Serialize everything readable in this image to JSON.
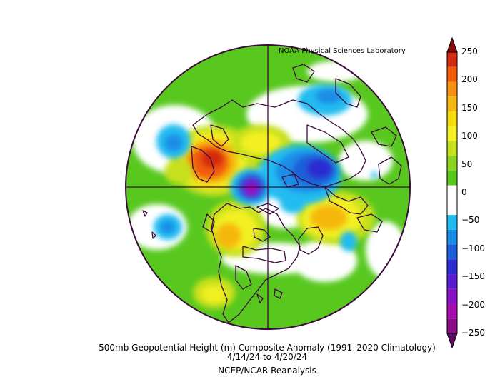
{
  "credit": "NOAA Physical Sciences Laboratory",
  "caption": {
    "line1": "500mb Geopotential Height (m) Composite Anomaly (1991–2020 Climatology)",
    "line2": "4/14/24   to 4/20/24",
    "line3": "NCEP/NCAR Reanalysis"
  },
  "colorbar": {
    "levels": [
      "250",
      "200",
      "150",
      "100",
      "50",
      "0",
      "−50",
      "−100",
      "−150",
      "−200",
      "−250"
    ],
    "colors": [
      "#8b0a0a",
      "#d42a10",
      "#f25c0a",
      "#f6920f",
      "#f6b70f",
      "#f5dc0c",
      "#f2f022",
      "#c6e01e",
      "#8dd420",
      "#58c81f",
      "#ffffff",
      "#ffffff",
      "#20bcf0",
      "#1a8de6",
      "#1c5fd8",
      "#2a2ad2",
      "#5a1bd0",
      "#8a12c6",
      "#a40cb0",
      "#8a0a8a",
      "#5e0a5e"
    ]
  }
}
